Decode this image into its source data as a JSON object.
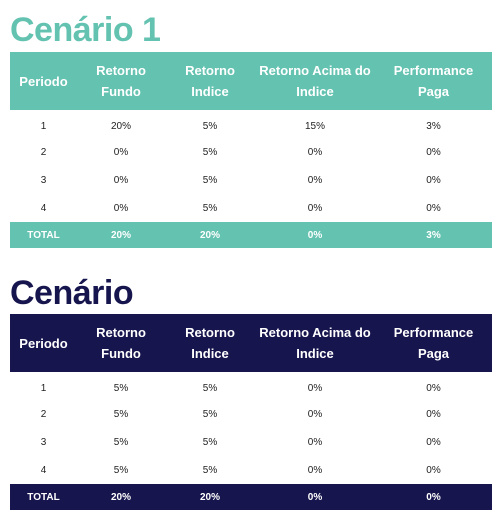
{
  "colors": {
    "scenario1_accent": "#64c2b0",
    "scenario2_accent": "#17154d",
    "total_text": "#ffffff",
    "body_text": "#222222"
  },
  "scenarios": [
    {
      "title": "Cenário 1",
      "headers": {
        "periodo": "Periodo",
        "retorno_fundo": "Retorno Fundo",
        "retorno_indice": "Retorno Indice",
        "retorno_acima": "Retorno Acima do Indice",
        "performance_paga": "Performance Paga"
      },
      "rows": [
        {
          "periodo": "1",
          "retorno_fundo": "20%",
          "retorno_indice": "5%",
          "retorno_acima": "15%",
          "performance_paga": "3%"
        },
        {
          "periodo": "2",
          "retorno_fundo": "0%",
          "retorno_indice": "5%",
          "retorno_acima": "0%",
          "performance_paga": "0%"
        },
        {
          "periodo": "3",
          "retorno_fundo": "0%",
          "retorno_indice": "5%",
          "retorno_acima": "0%",
          "performance_paga": "0%"
        },
        {
          "periodo": "4",
          "retorno_fundo": "0%",
          "retorno_indice": "5%",
          "retorno_acima": "0%",
          "performance_paga": "0%"
        }
      ],
      "total": {
        "label": "TOTAL",
        "retorno_fundo": "20%",
        "retorno_indice": "20%",
        "retorno_acima": "0%",
        "performance_paga": "3%"
      }
    },
    {
      "title": "Cenário",
      "headers": {
        "periodo": "Periodo",
        "retorno_fundo": "Retorno Fundo",
        "retorno_indice": "Retorno Indice",
        "retorno_acima": "Retorno Acima do Indice",
        "performance_paga": "Performance Paga"
      },
      "rows": [
        {
          "periodo": "1",
          "retorno_fundo": "5%",
          "retorno_indice": "5%",
          "retorno_acima": "0%",
          "performance_paga": "0%"
        },
        {
          "periodo": "2",
          "retorno_fundo": "5%",
          "retorno_indice": "5%",
          "retorno_acima": "0%",
          "performance_paga": "0%"
        },
        {
          "periodo": "3",
          "retorno_fundo": "5%",
          "retorno_indice": "5%",
          "retorno_acima": "0%",
          "performance_paga": "0%"
        },
        {
          "periodo": "4",
          "retorno_fundo": "5%",
          "retorno_indice": "5%",
          "retorno_acima": "0%",
          "performance_paga": "0%"
        }
      ],
      "total": {
        "label": "TOTAL",
        "retorno_fundo": "20%",
        "retorno_indice": "20%",
        "retorno_acima": "0%",
        "performance_paga": "0%"
      }
    }
  ]
}
